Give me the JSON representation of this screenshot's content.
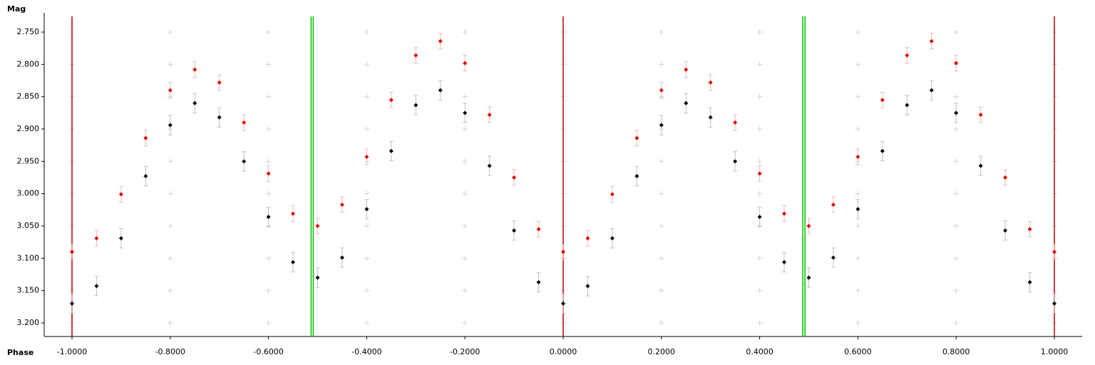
{
  "chart_data": {
    "type": "errorscatter",
    "xlabel": "Phase",
    "ylabel": "Mag",
    "xlim": [
      -1.0566,
      1.0566
    ],
    "ylim": [
      2.7202,
      3.221
    ],
    "y_inverted": true,
    "grid": true,
    "xticks": [
      {
        "value": -1,
        "label": "-1.0000"
      },
      {
        "value": -0.8,
        "label": "-0.8000"
      },
      {
        "value": -0.6,
        "label": "-0.6000"
      },
      {
        "value": -0.4,
        "label": "-0.4000"
      },
      {
        "value": -0.2,
        "label": "-0.2000"
      },
      {
        "value": 0,
        "label": "0.0000"
      },
      {
        "value": 0.2,
        "label": "0.2000"
      },
      {
        "value": 0.4,
        "label": "0.4000"
      },
      {
        "value": 0.6,
        "label": "0.6000"
      },
      {
        "value": 0.8,
        "label": "0.8000"
      },
      {
        "value": 1,
        "label": "1.0000"
      }
    ],
    "yticks": [
      {
        "value": 2.75,
        "label": "2.750"
      },
      {
        "value": 2.8,
        "label": "2.800"
      },
      {
        "value": 2.85,
        "label": "2.850"
      },
      {
        "value": 2.9,
        "label": "2.900"
      },
      {
        "value": 2.95,
        "label": "2.950"
      },
      {
        "value": 3,
        "label": "3.000"
      },
      {
        "value": 3.05,
        "label": "3.050"
      },
      {
        "value": 3.1,
        "label": "3.100"
      },
      {
        "value": 3.15,
        "label": "3.150"
      },
      {
        "value": 3.2,
        "label": "3.200"
      }
    ],
    "vlines": [
      {
        "value": -1,
        "color": "#b00000",
        "style": "single"
      },
      {
        "value": 0,
        "color": "#b00000",
        "style": "single"
      },
      {
        "value": 1,
        "color": "#b00000",
        "style": "single"
      },
      {
        "value": -0.511,
        "color": "#00c000",
        "style": "double"
      },
      {
        "value": 0.49,
        "color": "#00c000",
        "style": "double"
      }
    ],
    "x": [
      -1,
      -0.95,
      -0.9,
      -0.85,
      -0.8,
      -0.75,
      -0.7,
      -0.65,
      -0.6,
      -0.55,
      -0.5,
      -0.45,
      -0.4,
      -0.35,
      -0.3,
      -0.25,
      -0.2,
      -0.15,
      -0.1,
      -0.05,
      0,
      0.05,
      0.1,
      0.15,
      0.2,
      0.25,
      0.3,
      0.35,
      0.4,
      0.45,
      0.5,
      0.55,
      0.6,
      0.65,
      0.7,
      0.75,
      0.8,
      0.85,
      0.9,
      0.95,
      1
    ],
    "series": [
      {
        "color": "#000000",
        "error_color": "#c0c0c0",
        "error": 0.015,
        "values": [
          3.17,
          3.143,
          3.069,
          2.973,
          2.894,
          2.86,
          2.882,
          2.95,
          3.036,
          3.106,
          3.13,
          3.099,
          3.024,
          2.934,
          2.863,
          2.84,
          2.875,
          2.957,
          3.057,
          3.137,
          3.17,
          3.143,
          3.069,
          2.973,
          2.894,
          2.86,
          2.882,
          2.95,
          3.036,
          3.106,
          3.13,
          3.099,
          3.024,
          2.934,
          2.863,
          2.84,
          2.875,
          2.957,
          3.057,
          3.137,
          3.17
        ]
      },
      {
        "color": "#e00000",
        "error_color": "#f4b8b8",
        "error": 0.012,
        "values": [
          3.09,
          3.069,
          3.001,
          2.914,
          2.84,
          2.808,
          2.828,
          2.89,
          2.969,
          3.031,
          3.05,
          3.017,
          2.943,
          2.855,
          2.786,
          2.764,
          2.798,
          2.878,
          2.975,
          3.055,
          3.09,
          3.069,
          3.001,
          2.914,
          2.84,
          2.808,
          2.828,
          2.89,
          2.969,
          3.031,
          3.05,
          3.017,
          2.943,
          2.855,
          2.786,
          2.764,
          2.798,
          2.878,
          2.975,
          3.055,
          3.09
        ]
      }
    ]
  }
}
